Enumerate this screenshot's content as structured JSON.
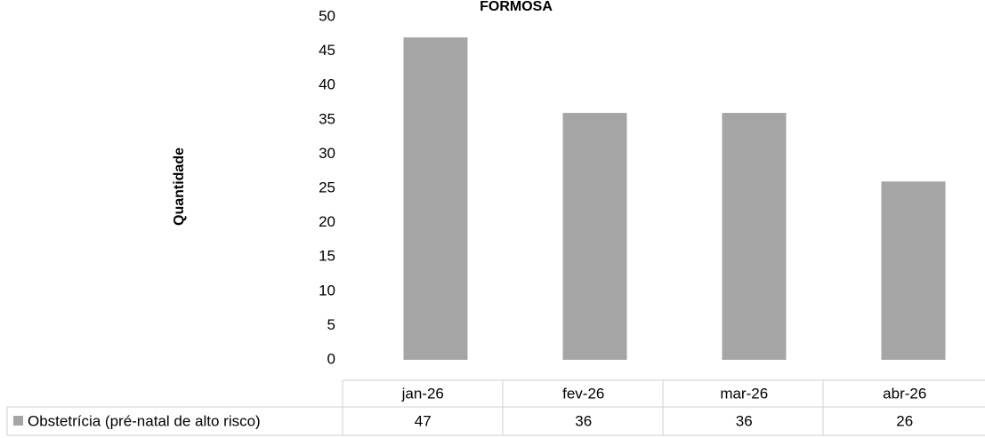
{
  "chart_data": {
    "type": "bar",
    "title": "FORMOSA",
    "y_label": "Quantidade",
    "categories": [
      "jan-26",
      "fev-26",
      "mar-26",
      "abr-26"
    ],
    "series": [
      {
        "name": "Obstetrícia (pré-natal de alto risco)",
        "color": "#a5a5a5",
        "values": [
          47,
          36,
          36,
          26
        ]
      }
    ],
    "ylim": [
      0,
      50
    ],
    "yticks": [
      0,
      5,
      10,
      15,
      20,
      25,
      30,
      35,
      40,
      45,
      50
    ],
    "grid": false
  }
}
